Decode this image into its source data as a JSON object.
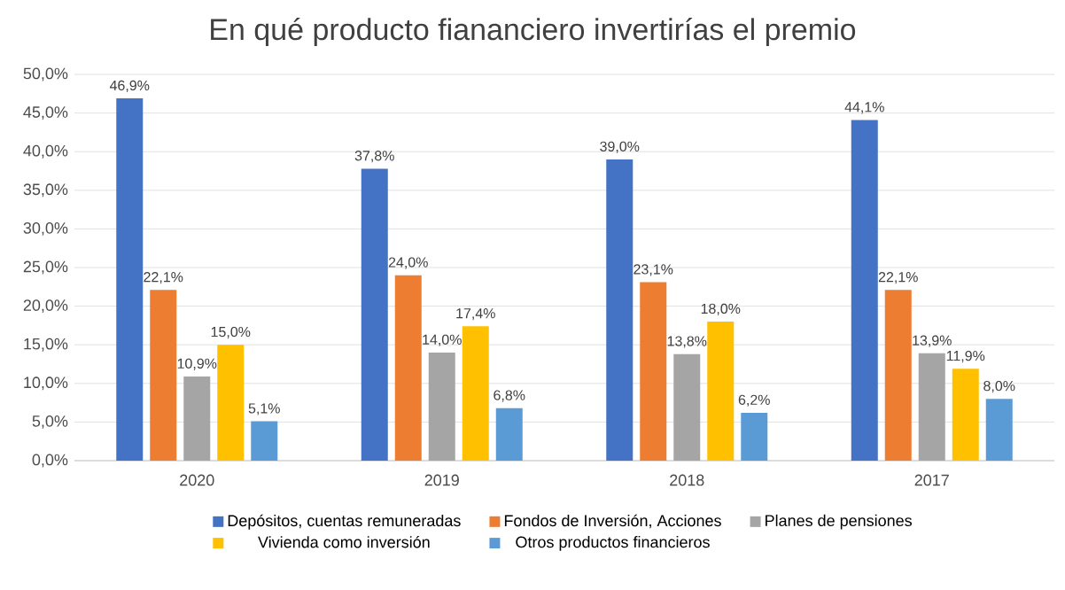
{
  "chart_data": {
    "type": "bar",
    "title": "En qué producto fiananciero invertirías el premio",
    "categories": [
      "2020",
      "2019",
      "2018",
      "2017"
    ],
    "series": [
      {
        "name": "Depósitos, cuentas remuneradas",
        "color": "#4472c4",
        "values": [
          46.9,
          37.8,
          39.0,
          44.1
        ],
        "value_labels": [
          "46,9%",
          "37,8%",
          "39,0%",
          "44,1%"
        ]
      },
      {
        "name": "Fondos de Inversión, Acciones",
        "color": "#ed7d31",
        "values": [
          22.1,
          24.0,
          23.1,
          22.1
        ],
        "value_labels": [
          "22,1%",
          "24,0%",
          "23,1%",
          "22,1%"
        ]
      },
      {
        "name": "Planes de pensiones",
        "color": "#a5a5a5",
        "values": [
          10.9,
          14.0,
          13.8,
          13.9
        ],
        "value_labels": [
          "10,9%",
          "14,0%",
          "13,8%",
          "13,9%"
        ]
      },
      {
        "name": "Vivienda como inversión",
        "color": "#ffc000",
        "values": [
          15.0,
          17.4,
          18.0,
          11.9
        ],
        "value_labels": [
          "15,0%",
          "17,4%",
          "18,0%",
          "11,9%"
        ]
      },
      {
        "name": "Otros productos financieros",
        "color": "#5b9bd5",
        "values": [
          5.1,
          6.8,
          6.2,
          8.0
        ],
        "value_labels": [
          "5,1%",
          "6,8%",
          "6,2%",
          "8,0%"
        ]
      }
    ],
    "ylim": [
      0,
      50
    ],
    "yticks": [
      {
        "value": 0,
        "label": "0,0%"
      },
      {
        "value": 5,
        "label": "5,0%"
      },
      {
        "value": 10,
        "label": "10,0%"
      },
      {
        "value": 15,
        "label": "15,0%"
      },
      {
        "value": 20,
        "label": "20,0%"
      },
      {
        "value": 25,
        "label": "25,0%"
      },
      {
        "value": 30,
        "label": "30,0%"
      },
      {
        "value": 35,
        "label": "35,0%"
      },
      {
        "value": 40,
        "label": "40,0%"
      },
      {
        "value": 45,
        "label": "45,0%"
      },
      {
        "value": 50,
        "label": "50,0%"
      }
    ],
    "grid": "y",
    "legend": "bottom"
  }
}
